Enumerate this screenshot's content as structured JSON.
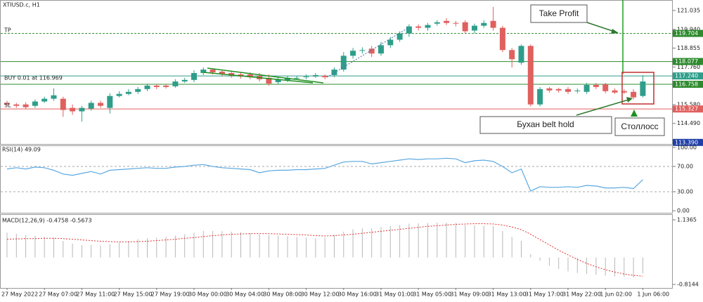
{
  "chart_data": [
    {
      "type": "candlestick",
      "title": "XTIUSD.c, H1",
      "up_color": "#2e9e8a",
      "down_color": "#e0605e",
      "ylim": [
        113.3,
        121.64
      ],
      "yticks": [
        121.035,
        {
          "value": 119.94,
          "label": "119.940"
        },
        118.855,
        {
          "value": 117.76,
          "label": "117.760"
        },
        {
          "value": 115.58,
          "label": "115.580"
        },
        {
          "value": 114.49,
          "label": "114.490"
        }
      ],
      "open": [
        115.68,
        115.59,
        115.59,
        115.51,
        115.76,
        115.92,
        115.92,
        115.39,
        115.19,
        115.35,
        115.68,
        115.39,
        116.08,
        116.2,
        116.32,
        116.48,
        116.68,
        116.68,
        116.64,
        116.92,
        117.01,
        117.41,
        117.61,
        117.49,
        117.41,
        117.33,
        117.33,
        117.25,
        117.13,
        116.88,
        116.97,
        117.13,
        117.17,
        117.21,
        117.25,
        117.29,
        117.61,
        118.41,
        118.7,
        118.82,
        118.54,
        119.02,
        119.34,
        119.7,
        120.11,
        120.03,
        120.27,
        120.43,
        120.31,
        120.35,
        119.87,
        120.15,
        120.43,
        120.03,
        118.74,
        118.01,
        118.98,
        115.59,
        116.52,
        116.48,
        116.48,
        116.36,
        116.32,
        116.72,
        116.76,
        116.4,
        116.36,
        116.32,
        116.08
      ],
      "high": [
        115.8,
        115.68,
        115.72,
        115.88,
        116.04,
        116.52,
        116.04,
        115.59,
        115.51,
        115.8,
        115.8,
        116.24,
        116.36,
        116.48,
        116.6,
        116.8,
        116.76,
        116.76,
        117.05,
        117.13,
        117.57,
        117.73,
        117.69,
        117.57,
        117.49,
        117.45,
        117.45,
        117.41,
        117.33,
        117.17,
        117.25,
        117.25,
        117.33,
        117.41,
        117.33,
        117.73,
        118.62,
        118.86,
        118.9,
        118.98,
        119.22,
        119.5,
        119.83,
        120.23,
        120.23,
        120.31,
        120.47,
        120.59,
        120.43,
        120.47,
        120.27,
        120.47,
        121.24,
        120.15,
        118.86,
        119.06,
        119.06,
        116.6,
        116.6,
        116.56,
        116.6,
        116.52,
        116.84,
        116.84,
        116.84,
        116.52,
        116.48,
        116.48,
        117.29
      ],
      "low": [
        115.47,
        115.39,
        115.31,
        115.39,
        115.68,
        115.8,
        114.87,
        114.99,
        114.59,
        115.23,
        115.39,
        115.07,
        116.0,
        116.12,
        116.2,
        116.36,
        116.48,
        116.52,
        116.56,
        116.84,
        116.88,
        117.29,
        117.33,
        117.21,
        117.13,
        117.09,
        117.05,
        116.92,
        116.68,
        116.76,
        116.88,
        117.01,
        117.05,
        117.13,
        117.05,
        117.17,
        117.49,
        118.25,
        118.54,
        118.34,
        118.41,
        118.86,
        119.22,
        119.5,
        119.87,
        119.87,
        120.15,
        120.19,
        120.11,
        119.7,
        119.7,
        120.03,
        119.87,
        118.62,
        117.73,
        117.89,
        115.47,
        115.47,
        116.28,
        116.28,
        116.2,
        116.24,
        116.2,
        116.48,
        116.24,
        116.2,
        116.2,
        115.88,
        116.0
      ],
      "close": [
        115.59,
        115.51,
        115.43,
        115.76,
        115.92,
        116.12,
        115.27,
        115.19,
        115.39,
        115.68,
        115.51,
        116.08,
        116.2,
        116.32,
        116.48,
        116.68,
        116.6,
        116.6,
        116.92,
        117.01,
        117.41,
        117.61,
        117.45,
        117.33,
        117.25,
        117.21,
        117.17,
        117.05,
        116.8,
        117.05,
        117.13,
        117.13,
        117.21,
        117.29,
        117.17,
        117.61,
        118.41,
        118.7,
        118.74,
        118.54,
        119.02,
        119.34,
        119.7,
        120.11,
        120.03,
        120.19,
        120.35,
        120.31,
        120.27,
        119.83,
        120.15,
        120.31,
        120.03,
        118.74,
        118.21,
        118.98,
        115.59,
        116.48,
        116.4,
        116.4,
        116.32,
        116.4,
        116.72,
        116.6,
        116.36,
        116.28,
        116.28,
        116.0,
        116.92
      ],
      "levels": [
        {
          "value": 119.704,
          "color": "#2e8b2e",
          "dash": true
        },
        {
          "value": 118.077,
          "color": "#2e8b2e"
        },
        {
          "value": 117.24,
          "label": "117.240",
          "color": "#2e9e8a"
        },
        {
          "value": 116.758,
          "color": "#2e8b2e"
        },
        {
          "value": 115.327,
          "color": "#e0605e"
        },
        {
          "value": 113.39,
          "label": "113.390",
          "color": "#1f3fa8",
          "line": false
        }
      ],
      "annotations": [
        "Take Profit",
        "Бухан belt hold",
        "Столлосс",
        "TP",
        "SL",
        "BUY 0.01 at 116.969"
      ]
    },
    {
      "type": "line",
      "title": "RSI(14) 49.09",
      "color": "#5aa8e0",
      "values": [
        66,
        68,
        66,
        69,
        68,
        64,
        58,
        56,
        59,
        62,
        58,
        64,
        65,
        66,
        67,
        68,
        67,
        67,
        69,
        70,
        72,
        73,
        70,
        68,
        67,
        66,
        65,
        60,
        63,
        64,
        64,
        65,
        65,
        66,
        67,
        72,
        77,
        78,
        78,
        74,
        76,
        78,
        80,
        82,
        81,
        82,
        82,
        83,
        82,
        76,
        79,
        80,
        78,
        70,
        60,
        66,
        31,
        38,
        37,
        37,
        38,
        37,
        40,
        39,
        36,
        36,
        37,
        35,
        49.09
      ],
      "ylim": [
        0,
        100
      ],
      "yticks": [
        {
          "value": 100,
          "label": "100.00"
        },
        {
          "value": 70,
          "label": "70.00"
        },
        {
          "value": 30,
          "label": "30.00"
        },
        {
          "value": 0,
          "label": "0.00"
        }
      ],
      "levels": [
        70,
        30
      ]
    },
    {
      "type": "macd",
      "title": "MACD(12,26,9) -0.4758 -0.5673",
      "ylim": [
        -0.8144,
        1.1365
      ],
      "yticks": [
        1.1365,
        -0.8144
      ],
      "categories": [
        "27 May 2022",
        null,
        null,
        null,
        "27 May 07:00",
        null,
        null,
        null,
        "27 May 11:00",
        null,
        null,
        null,
        "27 May 15:00",
        null,
        null,
        null,
        "27 May 19:00",
        null,
        null,
        null,
        "30 May 00:00",
        null,
        null,
        null,
        "30 May 04:00",
        null,
        null,
        null,
        "30 May 08:00",
        null,
        null,
        null,
        "30 May 12:00",
        null,
        null,
        null,
        "30 May 16:00",
        null,
        null,
        null,
        "31 May 01:00",
        null,
        null,
        null,
        "31 May 05:00",
        null,
        null,
        null,
        "31 May 09:00",
        null,
        null,
        null,
        "31 May 13:00",
        null,
        null,
        null,
        "31 May 17:00",
        null,
        null,
        null,
        "31 May 22:00",
        null,
        null,
        null,
        "1 Jun 02:00",
        null,
        null,
        null,
        "1 Jun 06:00"
      ],
      "series": [
        {
          "type": "bar",
          "color": "#b8b8b8",
          "values": [
            0.75,
            0.72,
            0.68,
            0.65,
            0.62,
            0.6,
            0.5,
            0.42,
            0.38,
            0.38,
            0.36,
            0.4,
            0.45,
            0.5,
            0.55,
            0.58,
            0.6,
            0.62,
            0.66,
            0.7,
            0.75,
            0.8,
            0.8,
            0.79,
            0.78,
            0.76,
            0.74,
            0.7,
            0.68,
            0.66,
            0.64,
            0.62,
            0.6,
            0.58,
            0.6,
            0.68,
            0.78,
            0.85,
            0.88,
            0.88,
            0.92,
            0.95,
            0.98,
            1.02,
            1.03,
            1.04,
            1.05,
            1.05,
            1.04,
            0.98,
            0.97,
            0.96,
            0.95,
            0.8,
            0.62,
            0.5,
            0.1,
            -0.1,
            -0.25,
            -0.35,
            -0.42,
            -0.47,
            -0.5,
            -0.52,
            -0.55,
            -0.57,
            -0.58,
            -0.6,
            -0.4758
          ]
        },
        {
          "type": "line",
          "color": "#e03030",
          "dash": true,
          "values": [
            0.55,
            0.56,
            0.57,
            0.57,
            0.58,
            0.58,
            0.57,
            0.55,
            0.53,
            0.51,
            0.49,
            0.48,
            0.47,
            0.47,
            0.48,
            0.49,
            0.51,
            0.53,
            0.55,
            0.58,
            0.6,
            0.63,
            0.66,
            0.68,
            0.7,
            0.71,
            0.72,
            0.72,
            0.72,
            0.71,
            0.7,
            0.69,
            0.68,
            0.66,
            0.65,
            0.66,
            0.68,
            0.7,
            0.73,
            0.76,
            0.79,
            0.82,
            0.85,
            0.88,
            0.91,
            0.94,
            0.96,
            0.98,
            1.0,
            1.01,
            1.02,
            1.02,
            1.01,
            0.98,
            0.92,
            0.84,
            0.7,
            0.54,
            0.38,
            0.22,
            0.08,
            -0.06,
            -0.18,
            -0.28,
            -0.37,
            -0.44,
            -0.5,
            -0.54,
            -0.5673
          ]
        }
      ]
    }
  ]
}
